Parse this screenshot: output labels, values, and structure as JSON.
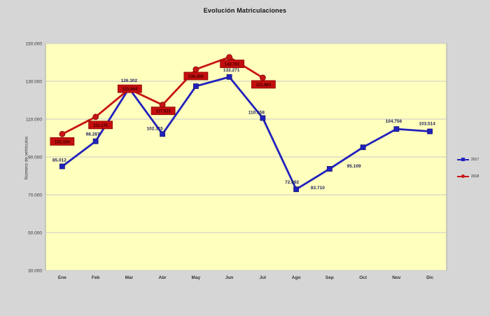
{
  "title": "Evolución Matriculaciones",
  "y_axis": {
    "label": "Número de vehículos",
    "ticks": [
      {
        "label": "150.000",
        "value": 150000
      },
      {
        "label": "130.000",
        "value": 130000
      },
      {
        "label": "110.000",
        "value": 110000
      },
      {
        "label": "90.000",
        "value": 90000
      },
      {
        "label": "70.000",
        "value": 70000
      },
      {
        "label": "50.000",
        "value": 50000
      },
      {
        "label": "30.000",
        "value": 30000
      }
    ]
  },
  "legend": [
    {
      "label": "2017",
      "color": "#2121bd",
      "marker": "square"
    },
    {
      "label": "2018",
      "color": "#c81414",
      "marker": "circle"
    }
  ],
  "colors": {
    "page_bg": "#d6d6d6",
    "plot_bg": "#ffffbe",
    "plot_border": "#a8a8a8",
    "grid": "#c9c9c9",
    "tick_text": "#333333",
    "month_text": "#333333",
    "series_2017": "#2121bd",
    "marker_edge_2017": "#15157a",
    "label_2017": "#1f1f5a",
    "series_2018": "#c81414",
    "marker_edge_2018": "#7a0c0c",
    "label_box_2018": "#c40e0e",
    "label_box_border_2018": "#8c0606",
    "label_text_2018": "#3c0000"
  },
  "chart_data": {
    "type": "line",
    "title": "Evolución Matriculaciones",
    "xlabel": "",
    "ylabel": "Número de vehículos",
    "ylim": [
      30000,
      150000
    ],
    "grid": true,
    "legend_position": "right-outside",
    "categories": [
      "Ene",
      "Feb",
      "Mar",
      "Abr",
      "May",
      "Jun",
      "Jul",
      "Ago",
      "Sep",
      "Oct",
      "Nov",
      "Dic"
    ],
    "series": [
      {
        "name": "2017",
        "marker": "square",
        "values": [
          85012,
          98287,
          126302,
          102115,
          127400,
          132271,
          110558,
          72892,
          83710,
          95109,
          104756,
          103514
        ],
        "labels": [
          "85.012",
          "98.287",
          "126.302",
          "102.115",
          "",
          "132.271",
          "110.558",
          "72.892",
          "83.710",
          "95.109",
          "104.756",
          "103.514"
        ],
        "label_offsets": [
          [
            -4,
            -7
          ],
          [
            -4,
            -8
          ],
          [
            0,
            -9
          ],
          [
            -11,
            -6
          ],
          [
            0,
            0
          ],
          [
            3,
            -8
          ],
          [
            -9,
            -6
          ],
          [
            -6,
            -8
          ],
          [
            -17,
            29
          ],
          [
            -13,
            29
          ],
          [
            -4,
            -9
          ],
          [
            -4,
            -9
          ]
        ]
      },
      {
        "name": "2018",
        "marker": "circle",
        "values": [
          102104,
          111175,
          125864,
          117523,
          136306,
          142741,
          131883,
          null,
          null,
          null,
          null,
          null
        ],
        "labels": [
          "102.104",
          "111.175",
          "125.864",
          "117.523",
          "136.306",
          "142.741",
          "131.883",
          "",
          "",
          "",
          "",
          ""
        ],
        "label_offsets": [
          [
            0,
            5
          ],
          [
            7,
            6
          ],
          [
            1,
            -6
          ],
          [
            1,
            3
          ],
          [
            0,
            4
          ],
          [
            4,
            4
          ],
          [
            1,
            4
          ],
          [
            0,
            0
          ],
          [
            0,
            0
          ],
          [
            0,
            0
          ],
          [
            0,
            0
          ],
          [
            0,
            0
          ]
        ]
      }
    ]
  }
}
